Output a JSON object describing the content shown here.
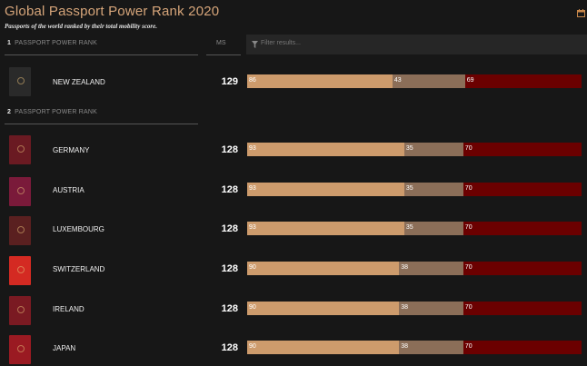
{
  "header": {
    "title": "Global Passport Power Rank 2020",
    "subtitle": "Passports of the world ranked by their total mobility score."
  },
  "columns": {
    "ms_label": "MS",
    "filter_placeholder": "Filter results..."
  },
  "colors": {
    "visa_free": "#cd9b6c",
    "visa_on_arrival": "#8b6e58",
    "visa_required": "#6b0000"
  },
  "groups": [
    {
      "rank": "1",
      "label": "PASSPORT POWER RANK",
      "rows": [
        {
          "country": "NEW ZEALAND",
          "ms": "129",
          "passport_color": "#2a2a2a",
          "visa_free": "86",
          "visa_on_arrival": "43",
          "visa_required": "69"
        }
      ]
    },
    {
      "rank": "2",
      "label": "PASSPORT POWER RANK",
      "rows": [
        {
          "country": "GERMANY",
          "ms": "128",
          "passport_color": "#6a1a22",
          "visa_free": "93",
          "visa_on_arrival": "35",
          "visa_required": "70"
        },
        {
          "country": "AUSTRIA",
          "ms": "128",
          "passport_color": "#7a1a3a",
          "visa_free": "93",
          "visa_on_arrival": "35",
          "visa_required": "70"
        },
        {
          "country": "LUXEMBOURG",
          "ms": "128",
          "passport_color": "#5a2020",
          "visa_free": "93",
          "visa_on_arrival": "35",
          "visa_required": "70"
        },
        {
          "country": "SWITZERLAND",
          "ms": "128",
          "passport_color": "#d42a22",
          "visa_free": "90",
          "visa_on_arrival": "38",
          "visa_required": "70"
        },
        {
          "country": "IRELAND",
          "ms": "128",
          "passport_color": "#7a1a22",
          "visa_free": "90",
          "visa_on_arrival": "38",
          "visa_required": "70"
        },
        {
          "country": "JAPAN",
          "ms": "128",
          "passport_color": "#9a1a22",
          "visa_free": "90",
          "visa_on_arrival": "38",
          "visa_required": "70"
        }
      ]
    }
  ]
}
